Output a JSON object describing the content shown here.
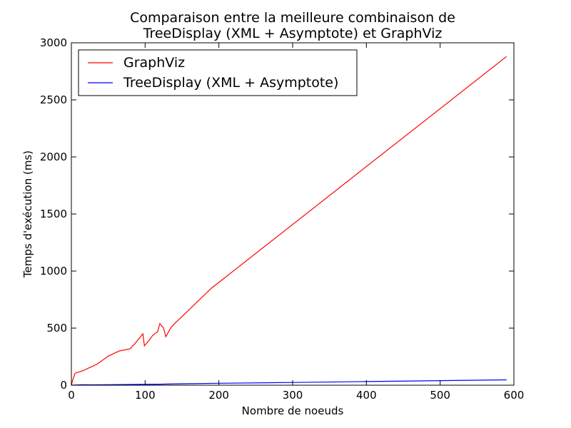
{
  "chart_data": {
    "type": "line",
    "title_lines": [
      "Comparaison entre la meilleure combinaison de",
      "TreeDisplay (XML + Asymptote) et GraphViz"
    ],
    "xlabel": "Nombre de noeuds",
    "ylabel": "Temps d'exécution (ms)",
    "xlim": [
      0,
      600
    ],
    "ylim": [
      0,
      3000
    ],
    "xticks": [
      0,
      100,
      200,
      300,
      400,
      500,
      600
    ],
    "yticks": [
      0,
      500,
      1000,
      1500,
      2000,
      2500,
      3000
    ],
    "grid": false,
    "legend_position": "top-left",
    "series": [
      {
        "name": "GraphViz",
        "color": "#ff0000",
        "x": [
          0,
          2,
          5,
          15,
          35,
          50,
          65,
          80,
          83,
          85,
          97,
          99,
          105,
          110,
          117,
          120,
          125,
          128,
          135,
          140,
          190,
          590
        ],
        "y": [
          0,
          50,
          105,
          125,
          185,
          255,
          300,
          320,
          345,
          355,
          450,
          345,
          390,
          435,
          470,
          540,
          500,
          425,
          505,
          540,
          850,
          2880
        ]
      },
      {
        "name": "TreeDisplay (XML + Asymptote)",
        "color": "#0000ff",
        "x": [
          0,
          5,
          15,
          30,
          60,
          90,
          120,
          140,
          200,
          300,
          400,
          500,
          590
        ],
        "y": [
          0,
          2,
          4,
          3,
          5,
          7,
          9,
          12,
          17,
          24,
          32,
          40,
          47
        ]
      }
    ]
  }
}
